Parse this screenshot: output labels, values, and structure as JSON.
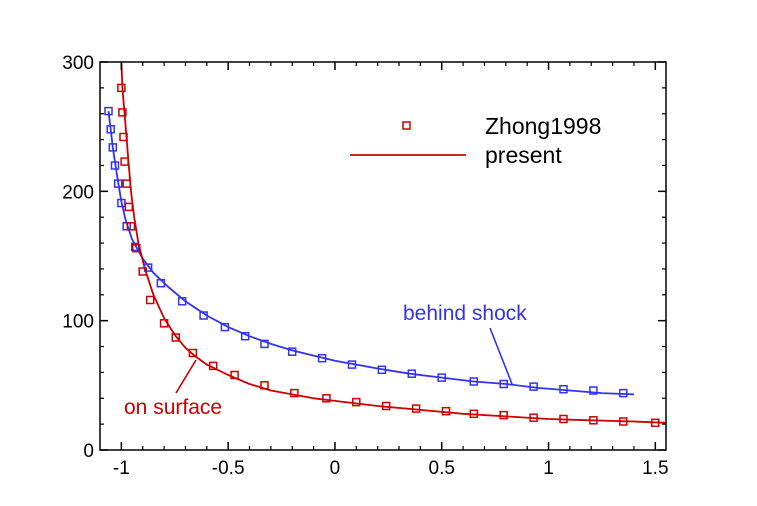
{
  "chart_data": {
    "type": "line",
    "title": "",
    "xlabel": "",
    "ylabel": "",
    "xlim": [
      -1.1,
      1.55
    ],
    "ylim": [
      0,
      300
    ],
    "xticks": [
      -1,
      -0.5,
      0,
      0.5,
      1,
      1.5
    ],
    "xtick_labels": [
      "-1",
      "-0.5",
      "0",
      "0.5",
      "1",
      "1.5"
    ],
    "yticks": [
      0,
      100,
      200,
      300
    ],
    "ytick_labels": [
      "0",
      "100",
      "200",
      "300"
    ],
    "grid": false,
    "legend": {
      "position": "top-right",
      "entries": [
        {
          "label": "Zhong1998",
          "style": "marker"
        },
        {
          "label": "present",
          "style": "line"
        }
      ]
    },
    "annotations": [
      {
        "text": "behind shock",
        "series": "behind shock"
      },
      {
        "text": "on surface",
        "series": "on surface"
      }
    ],
    "series": [
      {
        "name": "behind shock",
        "color": "#3333ee",
        "present": {
          "x": [
            -1.06,
            -1.05,
            -1.04,
            -1.02,
            -1.0,
            -0.98,
            -0.95,
            -0.9,
            -0.85,
            -0.78,
            -0.7,
            -0.6,
            -0.5,
            -0.4,
            -0.3,
            -0.2,
            -0.1,
            0.0,
            0.1,
            0.2,
            0.35,
            0.5,
            0.65,
            0.8,
            0.95,
            1.1,
            1.25,
            1.4
          ],
          "y": [
            262,
            248,
            234,
            212,
            192,
            178,
            163,
            148,
            137,
            126,
            115,
            104,
            95,
            88,
            82,
            77,
            73,
            69,
            66,
            63,
            59,
            56,
            53,
            51,
            48,
            46,
            44,
            43
          ]
        },
        "zhong1998": {
          "x": [
            -1.06,
            -1.05,
            -1.04,
            -1.03,
            -1.015,
            -1.0,
            -0.975,
            -0.935,
            -0.875,
            -0.815,
            -0.715,
            -0.615,
            -0.515,
            -0.42,
            -0.33,
            -0.2,
            -0.06,
            0.08,
            0.22,
            0.36,
            0.5,
            0.65,
            0.79,
            0.93,
            1.07,
            1.21,
            1.35
          ],
          "y": [
            262,
            248,
            234,
            220,
            206,
            191,
            173,
            157,
            141,
            129,
            115,
            104,
            95,
            88,
            82,
            76,
            71,
            66,
            62,
            59,
            56,
            53,
            51,
            49,
            47,
            46,
            44
          ]
        }
      },
      {
        "name": "on surface",
        "color": "#cc0000",
        "present": {
          "x": [
            -1.0,
            -0.995,
            -0.985,
            -0.975,
            -0.965,
            -0.955,
            -0.94,
            -0.92,
            -0.89,
            -0.85,
            -0.8,
            -0.75,
            -0.7,
            -0.65,
            -0.6,
            -0.5,
            -0.4,
            -0.3,
            -0.2,
            -0.1,
            0.0,
            0.2,
            0.4,
            0.6,
            0.8,
            1.0,
            1.2,
            1.4,
            1.55
          ],
          "y": [
            300,
            280,
            260,
            240,
            220,
            200,
            180,
            160,
            140,
            120,
            102,
            89,
            79,
            72,
            66,
            58,
            51,
            46,
            43,
            40,
            38,
            34,
            31,
            28,
            26,
            24,
            23,
            22,
            21
          ]
        },
        "zhong1998": {
          "x": [
            -1.0,
            -0.995,
            -0.99,
            -0.985,
            -0.975,
            -0.965,
            -0.955,
            -0.93,
            -0.9,
            -0.865,
            -0.8,
            -0.745,
            -0.665,
            -0.57,
            -0.47,
            -0.33,
            -0.19,
            -0.04,
            0.1,
            0.24,
            0.38,
            0.52,
            0.65,
            0.79,
            0.93,
            1.07,
            1.21,
            1.35,
            1.5
          ],
          "y": [
            280,
            261,
            242,
            223,
            206,
            188,
            173,
            156,
            138,
            116,
            98,
            87,
            75,
            65,
            58,
            50,
            44,
            40,
            37,
            34,
            32,
            30,
            28,
            27,
            25,
            24,
            23,
            22,
            21
          ]
        }
      }
    ]
  }
}
